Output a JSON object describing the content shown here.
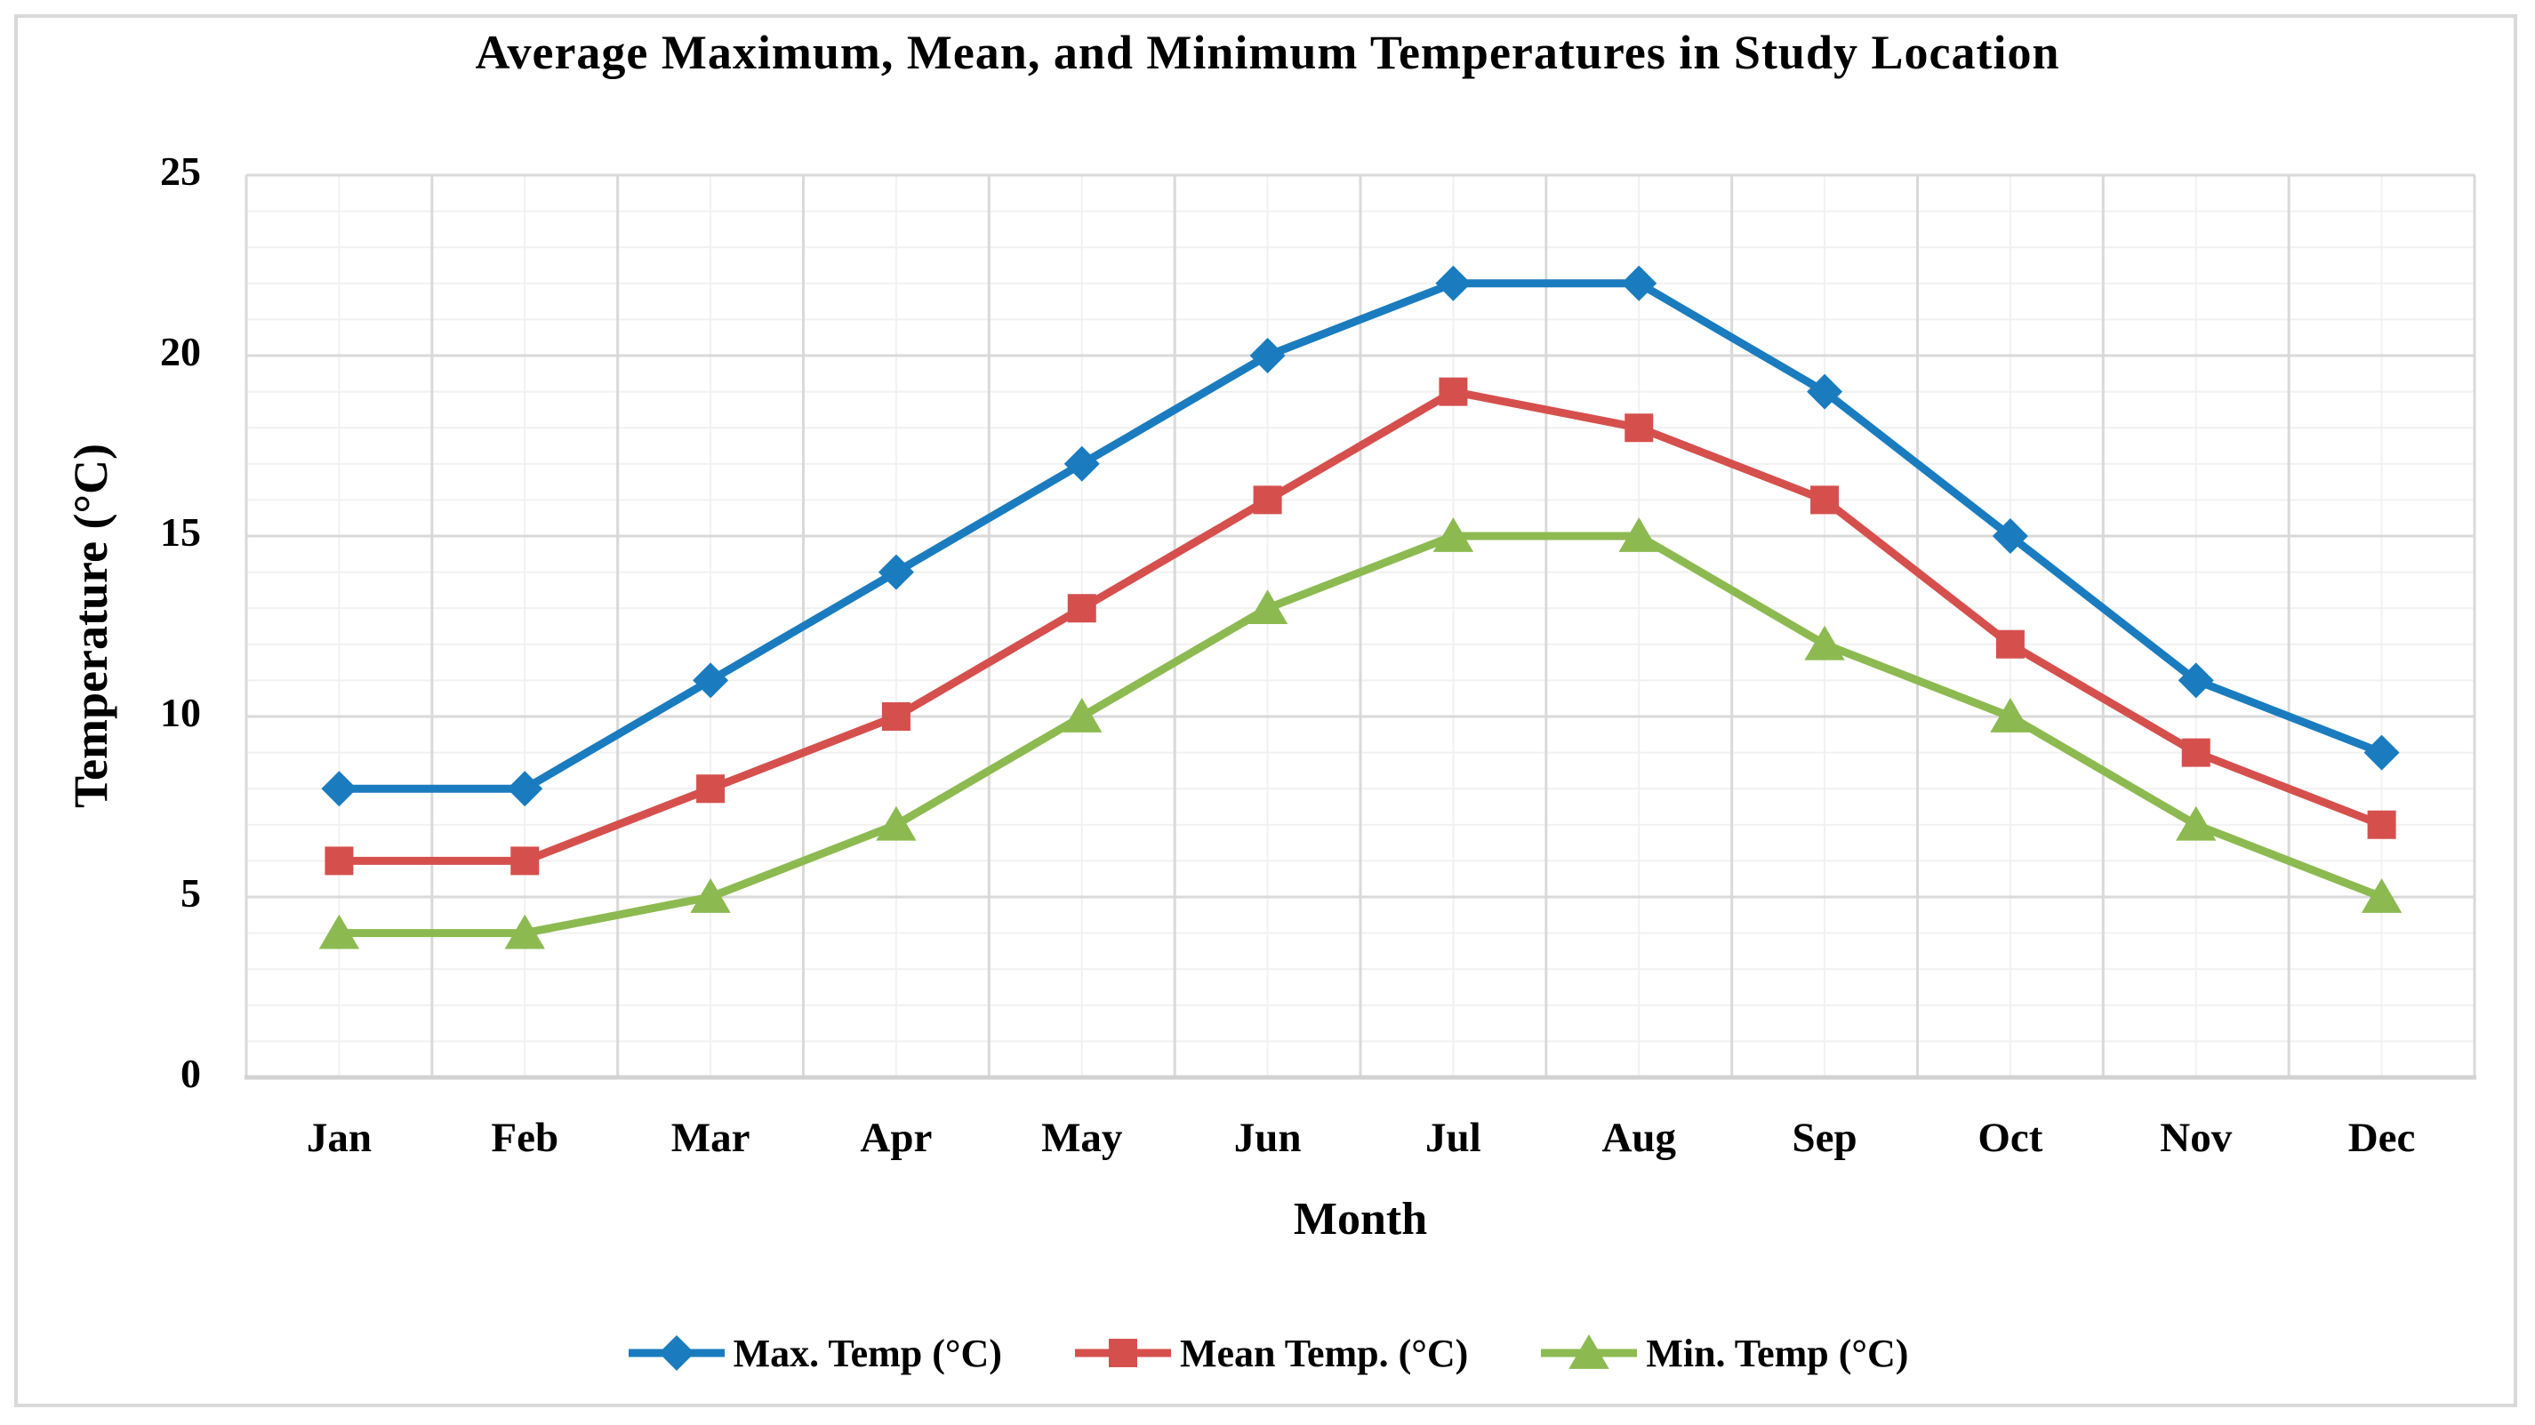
{
  "chart_data": {
    "type": "line",
    "title": "Average Maximum, Mean, and Minimum Temperatures in Study Location",
    "xlabel": "Month",
    "ylabel": "Temperature (°C)",
    "categories": [
      "Jan",
      "Feb",
      "Mar",
      "Apr",
      "May",
      "Jun",
      "Jul",
      "Aug",
      "Sep",
      "Oct",
      "Nov",
      "Dec"
    ],
    "series": [
      {
        "name": "Max. Temp (°C)",
        "marker": "diamond",
        "color": "#1A7CBF",
        "values": [
          8,
          8,
          11,
          14,
          17,
          20,
          22,
          22,
          19,
          15,
          11,
          9
        ]
      },
      {
        "name": "Mean Temp. (°C)",
        "marker": "square",
        "color": "#D5504D",
        "values": [
          6,
          6,
          8,
          10,
          13,
          16,
          19,
          18,
          16,
          12,
          9,
          7
        ]
      },
      {
        "name": "Min. Temp (°C)",
        "marker": "triangle",
        "color": "#8CBA50",
        "values": [
          4,
          4,
          5,
          7,
          10,
          13,
          15,
          15,
          12,
          10,
          7,
          5
        ]
      }
    ],
    "ylim": [
      0,
      25
    ],
    "y_major_ticks": [
      0,
      5,
      10,
      15,
      20,
      25
    ],
    "y_minor_step": 1,
    "grid": {
      "major_color": "#D9D9D9",
      "minor_color": "#F1F1F1",
      "axis_color": "#D2D2D2",
      "frame_border_color": "#D9D9D9",
      "major_on": true,
      "minor_on": true
    },
    "legend_position": "bottom"
  }
}
